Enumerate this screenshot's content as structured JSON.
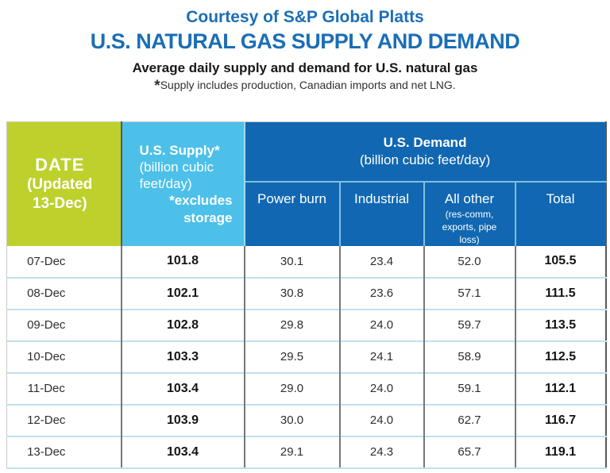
{
  "header": {
    "courtesy": "Courtesy of S&P Global Platts",
    "title": "U.S. NATURAL GAS SUPPLY AND DEMAND",
    "subtitle": "Average daily supply and demand for U.S. natural gas",
    "footnote_star": "*",
    "footnote": "Supply includes production, Canadian imports and net LNG."
  },
  "table": {
    "date_header": {
      "line1": "DATE",
      "line2": "(Updated",
      "line3": "13-Dec)"
    },
    "supply_header": {
      "title": "U.S. Supply*",
      "unit_line1": "(billion cubic",
      "unit_line2": "feet/day)",
      "note_line1": "*excludes",
      "note_line2": "storage"
    },
    "demand_header": {
      "title": "U.S. Demand",
      "unit": "(billion cubic feet/day)"
    },
    "demand_columns": [
      {
        "label": "Power burn"
      },
      {
        "label": "Industrial"
      },
      {
        "label": "All other",
        "sub1": "(res-comm,",
        "sub2": "exports, pipe",
        "sub3": "loss)"
      },
      {
        "label": "Total"
      }
    ],
    "rows": [
      {
        "date": "07-Dec",
        "supply": "101.8",
        "power_burn": "30.1",
        "industrial": "23.4",
        "all_other": "52.0",
        "total": "105.5"
      },
      {
        "date": "08-Dec",
        "supply": "102.1",
        "power_burn": "30.8",
        "industrial": "23.6",
        "all_other": "57.1",
        "total": "111.5"
      },
      {
        "date": "09-Dec",
        "supply": "102.8",
        "power_burn": "29.8",
        "industrial": "24.0",
        "all_other": "59.7",
        "total": "113.5"
      },
      {
        "date": "10-Dec",
        "supply": "103.3",
        "power_burn": "29.5",
        "industrial": "24.1",
        "all_other": "58.9",
        "total": "112.5"
      },
      {
        "date": "11-Dec",
        "supply": "103.4",
        "power_burn": "29.0",
        "industrial": "24.0",
        "all_other": "59.1",
        "total": "112.1"
      },
      {
        "date": "12-Dec",
        "supply": "103.9",
        "power_burn": "30.0",
        "industrial": "24.0",
        "all_other": "62.7",
        "total": "116.7"
      },
      {
        "date": "13-Dec",
        "supply": "103.4",
        "power_burn": "29.1",
        "industrial": "24.3",
        "all_other": "65.7",
        "total": "119.1"
      }
    ]
  },
  "colors": {
    "title_blue": "#1b6eb5",
    "date_green": "#bdd02c",
    "supply_light_blue": "#4cc0e8",
    "demand_dark_blue": "#1167b1",
    "row_divider_blue": "#bfe0ee",
    "column_divider_gray": "#77787b",
    "header_text": "#ffffff"
  },
  "chart_data": {
    "type": "table",
    "title": "U.S. NATURAL GAS SUPPLY AND DEMAND",
    "subtitle": "Average daily supply and demand for U.S. natural gas",
    "source": "Courtesy of S&P Global Platts",
    "footnote": "*Supply includes production, Canadian imports and net LNG.",
    "units": "billion cubic feet/day",
    "columns": [
      "DATE (Updated 13-Dec)",
      "U.S. Supply* (billion cubic feet/day) *excludes storage",
      "Demand: Power burn",
      "Demand: Industrial",
      "Demand: All other (res-comm, exports, pipe loss)",
      "Demand: Total"
    ],
    "rows": [
      [
        "07-Dec",
        101.8,
        30.1,
        23.4,
        52.0,
        105.5
      ],
      [
        "08-Dec",
        102.1,
        30.8,
        23.6,
        57.1,
        111.5
      ],
      [
        "09-Dec",
        102.8,
        29.8,
        24.0,
        59.7,
        113.5
      ],
      [
        "10-Dec",
        103.3,
        29.5,
        24.1,
        58.9,
        112.5
      ],
      [
        "11-Dec",
        103.4,
        29.0,
        24.0,
        59.1,
        112.1
      ],
      [
        "12-Dec",
        103.9,
        30.0,
        24.0,
        62.7,
        116.7
      ],
      [
        "13-Dec",
        103.4,
        29.1,
        24.3,
        65.7,
        119.1
      ]
    ]
  }
}
